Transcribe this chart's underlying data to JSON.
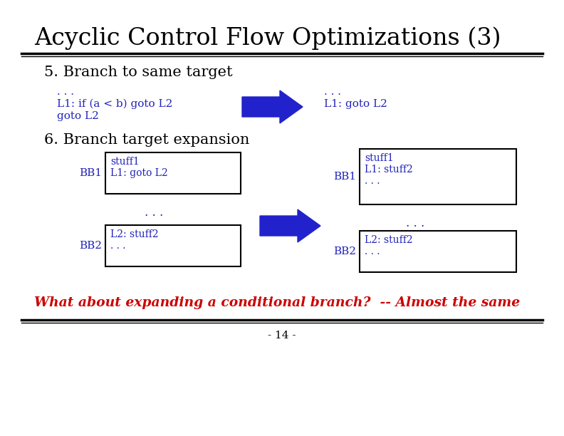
{
  "title": "Acyclic Control Flow Optimizations (3)",
  "bg_color": "#ffffff",
  "title_color": "#000000",
  "title_fontsize": 24,
  "section5_label": "5. Branch to same target",
  "section6_label": "6. Branch target expansion",
  "blue_color": "#2222bb",
  "red_color": "#cc0000",
  "arrow_color": "#2222cc",
  "footer_text": "- 14 -",
  "bottom_note": "What about expanding a conditional branch?  -- Almost the same",
  "sec5_left_line1": ". . .",
  "sec5_left_line2": "L1: if (a < b) goto L2",
  "sec5_left_line3": "goto L2",
  "sec5_right_line1": ". . .",
  "sec5_right_line2": "L1: goto L2",
  "bb1_left_line1": "stuff1",
  "bb1_left_line2": "L1: goto L2",
  "bb1_right_line1": "stuff1",
  "bb1_right_line2": "L1: stuff2",
  "bb1_right_line3": ". . .",
  "bb2_left_line1": "L2: stuff2",
  "bb2_left_line2": ". . .",
  "bb2_right_line1": "L2: stuff2",
  "bb2_right_line2": ". . .",
  "dots_mid_left": ". . .",
  "dots_mid_right": ". . ."
}
